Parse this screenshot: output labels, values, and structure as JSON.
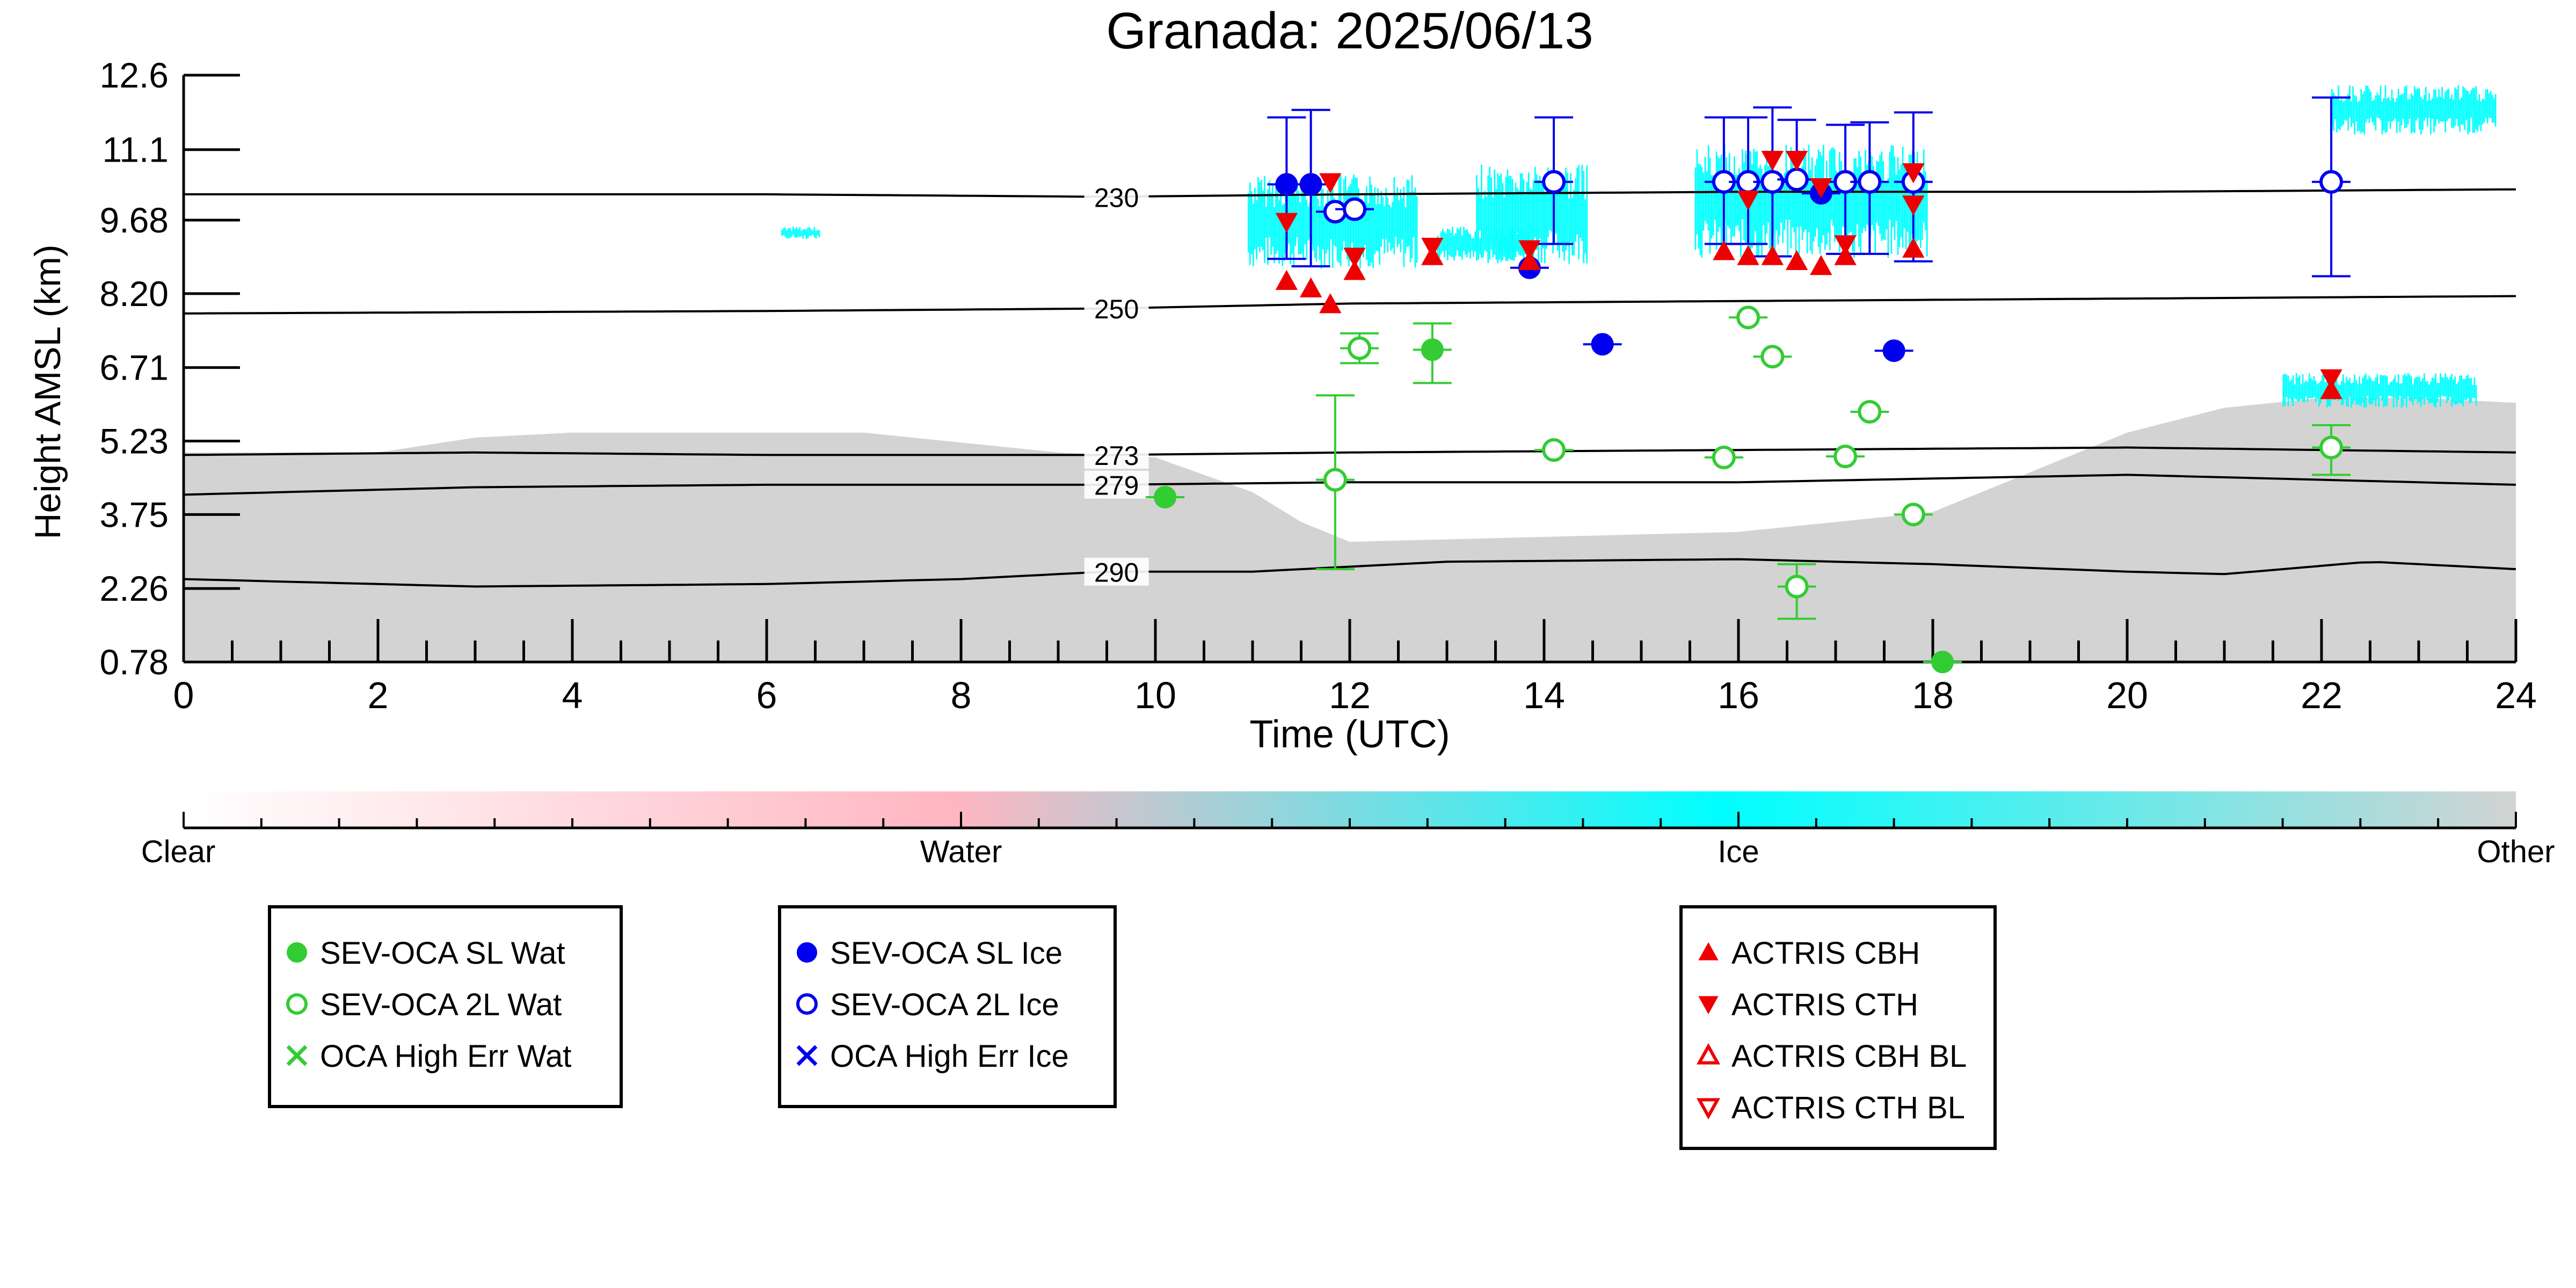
{
  "chart_data": {
    "type": "scatter",
    "title": "Granada: 2025/06/13",
    "xlabel": "Time (UTC)",
    "ylabel": "Height AMSL (km)",
    "xlim": [
      0,
      24
    ],
    "ylim": [
      0.78,
      12.6
    ],
    "xticks": [
      "0",
      "2",
      "4",
      "6",
      "8",
      "10",
      "12",
      "14",
      "16",
      "18",
      "20",
      "22",
      "24"
    ],
    "yticks": [
      "0.78",
      "2.26",
      "3.75",
      "5.23",
      "6.71",
      "8.20",
      "9.68",
      "11.1",
      "12.6"
    ],
    "grid": false,
    "isotherms": [
      {
        "label": "230",
        "x": [
          0,
          6,
          9.5,
          12,
          16,
          20,
          24
        ],
        "y": [
          10.2,
          10.2,
          10.15,
          10.2,
          10.25,
          10.25,
          10.3
        ]
      },
      {
        "label": "250",
        "x": [
          0,
          6,
          9.5,
          12,
          16,
          20,
          24
        ],
        "y": [
          7.8,
          7.85,
          7.9,
          8.0,
          8.05,
          8.1,
          8.15
        ]
      },
      {
        "label": "273",
        "x": [
          0,
          3,
          6,
          9.5,
          12,
          16,
          20,
          24
        ],
        "y": [
          4.95,
          5.0,
          4.95,
          4.95,
          5.0,
          5.05,
          5.1,
          5.0
        ]
      },
      {
        "label": "279",
        "x": [
          0,
          3,
          6,
          9.5,
          12,
          16,
          20,
          24
        ],
        "y": [
          4.15,
          4.3,
          4.35,
          4.35,
          4.4,
          4.4,
          4.55,
          4.35
        ]
      },
      {
        "label": "290",
        "x": [
          0,
          3,
          6,
          8,
          9.5,
          11,
          13,
          16,
          18,
          20,
          21,
          22.5,
          24
        ],
        "y": [
          2.45,
          2.3,
          2.35,
          2.45,
          2.6,
          2.6,
          2.8,
          2.85,
          2.75,
          2.6,
          2.55,
          2.8,
          2.65
        ]
      }
    ],
    "series": [
      {
        "name": "SEV-OCA SL Wat",
        "marker": "filled-circle",
        "color": "#33cc33",
        "points": [
          {
            "x": 10.1,
            "y": 4.1,
            "ylo": 4.1,
            "yhi": 4.1
          },
          {
            "x": 12.85,
            "y": 7.07,
            "ylo": 6.4,
            "yhi": 7.6
          },
          {
            "x": 18.1,
            "y": 0.78,
            "ylo": 0.78,
            "yhi": 0.78
          }
        ]
      },
      {
        "name": "SEV-OCA 2L Wat",
        "marker": "open-circle",
        "color": "#33cc33",
        "points": [
          {
            "x": 11.85,
            "y": 4.45,
            "ylo": 2.65,
            "yhi": 6.15
          },
          {
            "x": 12.1,
            "y": 7.1,
            "ylo": 6.8,
            "yhi": 7.4
          },
          {
            "x": 14.1,
            "y": 5.05,
            "ylo": 5.05,
            "yhi": 5.05
          },
          {
            "x": 15.85,
            "y": 4.9,
            "ylo": 4.9,
            "yhi": 4.9
          },
          {
            "x": 16.1,
            "y": 7.72,
            "ylo": 7.72,
            "yhi": 7.72
          },
          {
            "x": 16.35,
            "y": 6.93,
            "ylo": 6.93,
            "yhi": 6.93
          },
          {
            "x": 16.6,
            "y": 2.3,
            "ylo": 1.65,
            "yhi": 2.75
          },
          {
            "x": 17.1,
            "y": 4.92,
            "ylo": 4.92,
            "yhi": 4.92
          },
          {
            "x": 17.35,
            "y": 5.82,
            "ylo": 5.82,
            "yhi": 5.82
          },
          {
            "x": 17.8,
            "y": 3.75,
            "ylo": 3.75,
            "yhi": 3.75
          },
          {
            "x": 22.1,
            "y": 5.1,
            "ylo": 4.55,
            "yhi": 5.55
          }
        ]
      },
      {
        "name": "OCA High Err Wat",
        "marker": "x",
        "color": "#33cc33",
        "points": []
      },
      {
        "name": "SEV-OCA SL Ice",
        "marker": "filled-circle",
        "color": "#0000ee",
        "points": [
          {
            "x": 11.35,
            "y": 10.4,
            "ylo": 8.9,
            "yhi": 11.75
          },
          {
            "x": 11.6,
            "y": 10.4,
            "ylo": 8.75,
            "yhi": 11.9
          },
          {
            "x": 13.85,
            "y": 8.72,
            "ylo": 8.72,
            "yhi": 8.72
          },
          {
            "x": 14.6,
            "y": 7.18,
            "ylo": 7.18,
            "yhi": 7.18
          },
          {
            "x": 16.85,
            "y": 10.22,
            "ylo": 10.22,
            "yhi": 10.22
          },
          {
            "x": 17.6,
            "y": 7.05,
            "ylo": 7.05,
            "yhi": 7.05
          }
        ]
      },
      {
        "name": "SEV-OCA 2L Ice",
        "marker": "open-circle",
        "color": "#0000ee",
        "points": [
          {
            "x": 11.85,
            "y": 9.85,
            "ylo": 9.85,
            "yhi": 9.85
          },
          {
            "x": 12.05,
            "y": 9.9,
            "ylo": 9.9,
            "yhi": 9.9
          },
          {
            "x": 14.1,
            "y": 10.45,
            "ylo": 9.2,
            "yhi": 11.75
          },
          {
            "x": 15.85,
            "y": 10.45,
            "ylo": 9.2,
            "yhi": 11.75
          },
          {
            "x": 16.1,
            "y": 10.45,
            "ylo": 9.2,
            "yhi": 11.75
          },
          {
            "x": 16.35,
            "y": 10.45,
            "ylo": 8.95,
            "yhi": 11.95
          },
          {
            "x": 16.6,
            "y": 10.5,
            "ylo": 10.5,
            "yhi": 11.7
          },
          {
            "x": 17.1,
            "y": 10.45,
            "ylo": 9.0,
            "yhi": 11.6
          },
          {
            "x": 17.35,
            "y": 10.45,
            "ylo": 9.0,
            "yhi": 11.65
          },
          {
            "x": 17.8,
            "y": 10.45,
            "ylo": 8.85,
            "yhi": 11.85
          },
          {
            "x": 22.1,
            "y": 10.45,
            "ylo": 8.55,
            "yhi": 12.15
          }
        ]
      },
      {
        "name": "OCA High Err Ice",
        "marker": "x",
        "color": "#0000ee",
        "points": []
      },
      {
        "name": "ACTRIS CBH",
        "marker": "filled-triangle-up",
        "color": "#ee0000",
        "points": [
          {
            "x": 11.35,
            "y": 8.45
          },
          {
            "x": 11.6,
            "y": 8.3
          },
          {
            "x": 11.8,
            "y": 7.98
          },
          {
            "x": 12.05,
            "y": 8.65
          },
          {
            "x": 12.85,
            "y": 8.95
          },
          {
            "x": 13.85,
            "y": 8.85
          },
          {
            "x": 15.85,
            "y": 9.05
          },
          {
            "x": 16.1,
            "y": 8.95
          },
          {
            "x": 16.35,
            "y": 8.95
          },
          {
            "x": 16.6,
            "y": 8.85
          },
          {
            "x": 16.85,
            "y": 8.75
          },
          {
            "x": 17.1,
            "y": 8.95
          },
          {
            "x": 17.8,
            "y": 9.1
          },
          {
            "x": 22.1,
            "y": 6.25
          }
        ]
      },
      {
        "name": "ACTRIS CTH",
        "marker": "filled-triangle-down",
        "color": "#ee0000",
        "points": [
          {
            "x": 11.35,
            "y": 9.65
          },
          {
            "x": 11.8,
            "y": 10.45
          },
          {
            "x": 12.05,
            "y": 8.95
          },
          {
            "x": 12.85,
            "y": 9.15
          },
          {
            "x": 13.85,
            "y": 9.1
          },
          {
            "x": 16.1,
            "y": 10.1
          },
          {
            "x": 16.35,
            "y": 10.9
          },
          {
            "x": 16.6,
            "y": 10.9
          },
          {
            "x": 16.85,
            "y": 10.35
          },
          {
            "x": 17.1,
            "y": 9.2
          },
          {
            "x": 17.8,
            "y": 10.65
          },
          {
            "x": 17.8,
            "y": 10.0
          },
          {
            "x": 22.1,
            "y": 6.5
          }
        ]
      },
      {
        "name": "ACTRIS CBH BL",
        "marker": "open-triangle-up",
        "color": "#ee0000",
        "points": []
      },
      {
        "name": "ACTRIS CTH BL",
        "marker": "open-triangle-down",
        "color": "#ee0000",
        "points": []
      }
    ],
    "background": {
      "other": [
        {
          "x": [
            0,
            1,
            2,
            3,
            4,
            5,
            6,
            7,
            8,
            9,
            10,
            11,
            11.5,
            12,
            14,
            16,
            18,
            19,
            20,
            21,
            22,
            23,
            24
          ],
          "top": [
            5.0,
            5.0,
            5.0,
            5.3,
            5.4,
            5.4,
            5.4,
            5.4,
            5.2,
            5.0,
            4.9,
            4.2,
            3.6,
            3.2,
            3.3,
            3.4,
            3.8,
            4.6,
            5.4,
            5.9,
            6.1,
            6.1,
            6.0
          ]
        }
      ],
      "ice": [
        {
          "x": [
            10.95,
            12.7
          ],
          "y": [
            8.7,
            10.6
          ]
        },
        {
          "x": 12.9,
          "x2": 13.9,
          "y": [
            8.85,
            9.55
          ]
        },
        {
          "x": 13.3,
          "x2": 14.45,
          "y": [
            8.8,
            10.8
          ]
        },
        {
          "x": 15.55,
          "x2": 17.95,
          "y": [
            8.9,
            11.2
          ]
        },
        {
          "x": 6.15,
          "x2": 6.55,
          "y": [
            9.3,
            9.55
          ]
        },
        {
          "x": 22.1,
          "x2": 23.8,
          "y": [
            11.4,
            12.4
          ]
        },
        {
          "x": 21.6,
          "x2": 23.6,
          "y": [
            5.9,
            6.6
          ]
        }
      ]
    },
    "colorbar": {
      "labels": [
        "Clear",
        "Water",
        "Ice",
        "Other"
      ],
      "colors": [
        "#ffffff",
        "#ffb6c1",
        "#00ffff",
        "#d3d3d3"
      ]
    },
    "legend": {
      "placement": "bottom",
      "groups": [
        [
          "SEV-OCA SL Wat",
          "SEV-OCA 2L Wat",
          "OCA High Err Wat"
        ],
        [
          "SEV-OCA SL Ice",
          "SEV-OCA 2L Ice",
          "OCA High Err Ice"
        ],
        [
          "ACTRIS CBH",
          "ACTRIS CTH",
          "ACTRIS CBH BL",
          "ACTRIS CTH BL"
        ]
      ]
    }
  }
}
